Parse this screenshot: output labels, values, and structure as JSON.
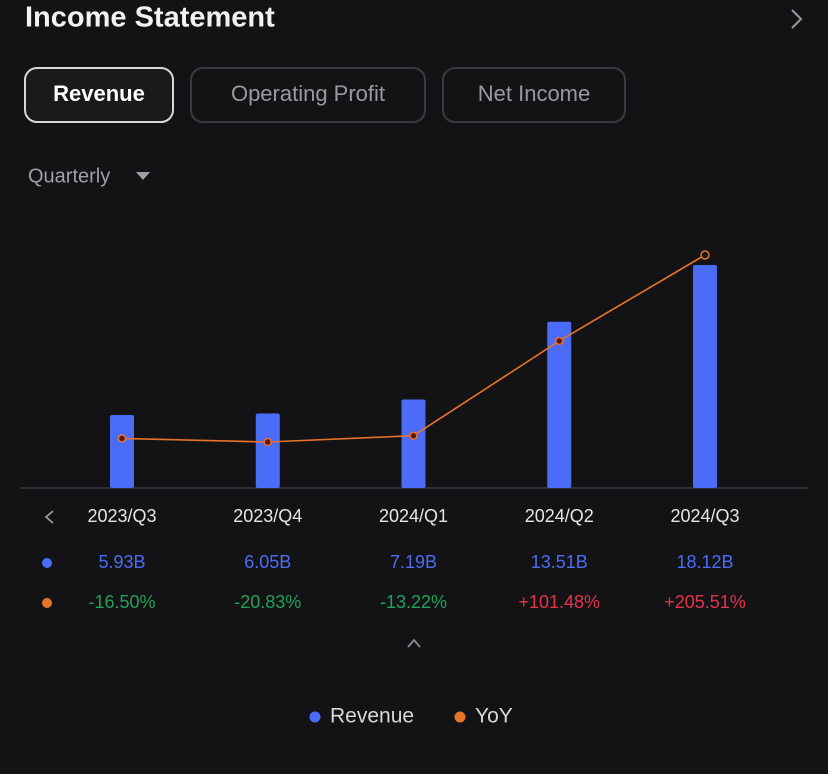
{
  "header": {
    "title": "Income Statement"
  },
  "tabs": [
    "Revenue",
    "Operating Profit",
    "Net Income"
  ],
  "period": "Quarterly",
  "chart_data": {
    "type": "bar",
    "categories": [
      "2023/Q3",
      "2023/Q4",
      "2024/Q1",
      "2024/Q2",
      "2024/Q3"
    ],
    "series": [
      {
        "name": "Revenue",
        "color": "#4a6cf7",
        "values": [
          5.93,
          6.05,
          7.19,
          13.51,
          18.12
        ],
        "value_labels": [
          "5.93B",
          "6.05B",
          "7.19B",
          "13.51B",
          "18.12B"
        ]
      },
      {
        "name": "YoY",
        "type": "line",
        "axis": "y2",
        "color": "#e8732a",
        "values": [
          -16.5,
          -20.83,
          -13.22,
          101.48,
          205.51
        ],
        "value_labels": [
          "-16.50%",
          "-20.83%",
          "-13.22%",
          "+101.48%",
          "+205.51%"
        ]
      }
    ]
  }
}
